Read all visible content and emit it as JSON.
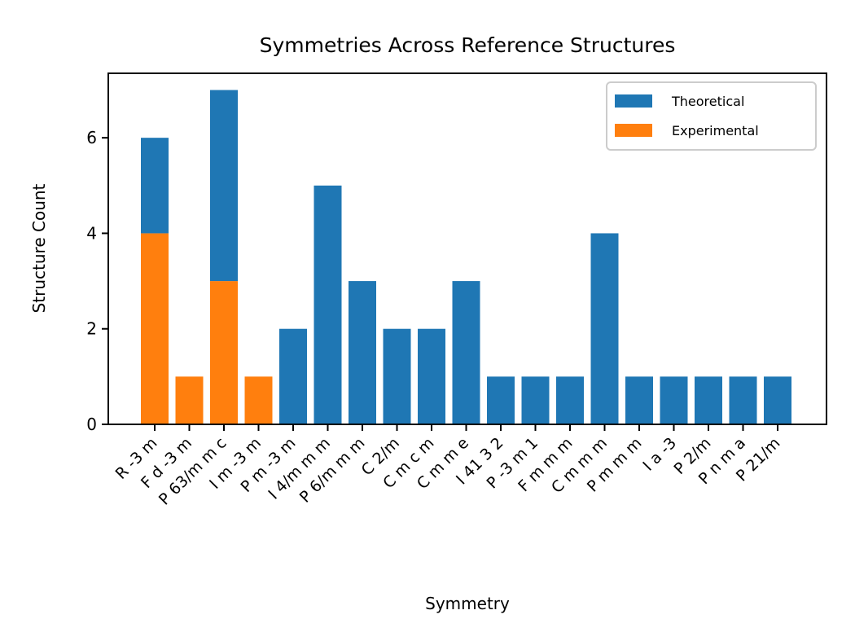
{
  "chart_data": {
    "type": "bar",
    "stacked": true,
    "title": "Symmetries Across Reference Structures",
    "xlabel": "Symmetry",
    "ylabel": "Structure Count",
    "ylim": [
      0,
      7.35
    ],
    "yticks": [
      0,
      2,
      4,
      6
    ],
    "grid": false,
    "legend_position": "top-right",
    "categories": [
      "R -3 m",
      "F d -3 m",
      "P 63/m m c",
      "I m -3 m",
      "P m -3 m",
      "I 4/m m m",
      "P 6/m m m",
      "C 2/m",
      "C m c m",
      "C m m e",
      "I 41 3 2",
      "P -3 m 1",
      "F m m m",
      "C m m m",
      "P m m m",
      "I a -3",
      "P 2/m",
      "P n m a",
      "P 21/m"
    ],
    "series": [
      {
        "name": "Experimental",
        "color": "#ff7f0e",
        "values": [
          4,
          1,
          3,
          1,
          0,
          0,
          0,
          0,
          0,
          0,
          0,
          0,
          0,
          0,
          0,
          0,
          0,
          0,
          0
        ]
      },
      {
        "name": "Theoretical",
        "color": "#1f77b4",
        "values": [
          2,
          0,
          4,
          0,
          2,
          5,
          3,
          2,
          2,
          3,
          1,
          1,
          1,
          4,
          1,
          1,
          1,
          1,
          1
        ]
      }
    ],
    "legend_order": [
      "Theoretical",
      "Experimental"
    ]
  }
}
